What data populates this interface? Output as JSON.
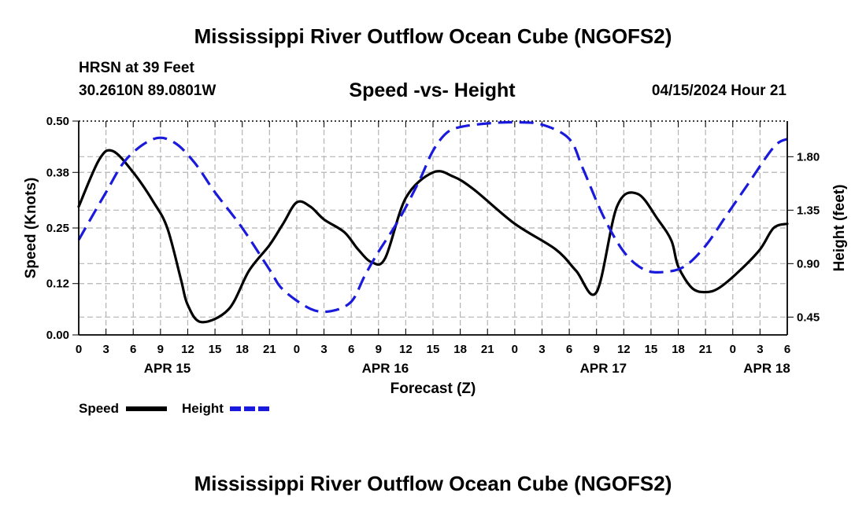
{
  "page": {
    "title": "Mississippi River Outflow Ocean Cube (NGOFS2)",
    "footer_title": "Mississippi River Outflow Ocean Cube (NGOFS2)",
    "station": "HRSN at 39 Feet",
    "coords": "30.2610N  89.0801W",
    "forecast_time": "04/15/2024 Hour 21"
  },
  "chart_data": {
    "type": "line",
    "title": "Speed -vs- Height",
    "xlabel": "Forecast (Z)",
    "ylabel": "Speed (Knots)",
    "y2label": "Height (feet)",
    "ylim": [
      0,
      0.5
    ],
    "y2lim": [
      0.3,
      2.1
    ],
    "xlim": [
      0,
      78
    ],
    "yticks": [
      "0.00",
      "0.12",
      "0.25",
      "0.38",
      "0.50"
    ],
    "y2ticks": [
      "0.45",
      "0.90",
      "1.35",
      "1.80"
    ],
    "xtick_labels": [
      "0",
      "3",
      "6",
      "9",
      "12",
      "15",
      "18",
      "21",
      "0",
      "3",
      "6",
      "9",
      "12",
      "15",
      "18",
      "21",
      "0",
      "3",
      "6",
      "9",
      "12",
      "15",
      "18",
      "21",
      "0",
      "3",
      "6"
    ],
    "date_labels": [
      {
        "label": "APR 15",
        "x": 9.75
      },
      {
        "label": "APR 16",
        "x": 33.75
      },
      {
        "label": "APR 17",
        "x": 57.75
      },
      {
        "label": "APR 18",
        "x": 75.75
      }
    ],
    "grid": true,
    "legend": [
      {
        "label": "Speed",
        "color": "#000000",
        "style": "solid"
      },
      {
        "label": "Height",
        "color": "#1a1adc",
        "style": "dashed"
      }
    ],
    "series": [
      {
        "name": "Speed",
        "color": "#000000",
        "axis": "left",
        "x": [
          0,
          2.25,
          3.75,
          6,
          8.25,
          9.75,
          11.25,
          12,
          13.5,
          16.5,
          18.75,
          21,
          22.5,
          24,
          25.5,
          27,
          29.25,
          30.75,
          32.25,
          33.75,
          36,
          39,
          41.25,
          43.5,
          48,
          52.5,
          54.75,
          57,
          59.25,
          61.5,
          63.75,
          65.25,
          66,
          67.5,
          69,
          70.5,
          72.75,
          75,
          76.5,
          78
        ],
        "y": [
          0.3,
          0.41,
          0.43,
          0.38,
          0.31,
          0.25,
          0.13,
          0.07,
          0.03,
          0.06,
          0.15,
          0.21,
          0.26,
          0.31,
          0.3,
          0.27,
          0.24,
          0.2,
          0.17,
          0.18,
          0.32,
          0.38,
          0.37,
          0.34,
          0.26,
          0.2,
          0.15,
          0.1,
          0.3,
          0.33,
          0.27,
          0.22,
          0.16,
          0.11,
          0.1,
          0.11,
          0.15,
          0.2,
          0.25,
          0.26
        ]
      },
      {
        "name": "Height",
        "color": "#1a1adc",
        "axis": "right",
        "x": [
          0,
          3,
          5.25,
          8.25,
          10.5,
          12.75,
          15,
          18,
          21,
          22.5,
          25.5,
          27.75,
          30,
          31.5,
          33,
          35.25,
          37.5,
          39,
          40.5,
          42,
          45,
          48,
          51,
          54,
          55.5,
          57.75,
          60,
          62.25,
          64.5,
          66.75,
          69,
          71.25,
          73.5,
          76.5,
          78
        ],
        "y": [
          1.1,
          1.5,
          1.78,
          1.95,
          1.92,
          1.75,
          1.5,
          1.2,
          0.85,
          0.68,
          0.52,
          0.5,
          0.58,
          0.8,
          1.0,
          1.27,
          1.6,
          1.85,
          2.0,
          2.05,
          2.08,
          2.09,
          2.07,
          1.95,
          1.7,
          1.3,
          1.0,
          0.85,
          0.83,
          0.88,
          1.05,
          1.3,
          1.55,
          1.88,
          1.95
        ]
      }
    ]
  }
}
